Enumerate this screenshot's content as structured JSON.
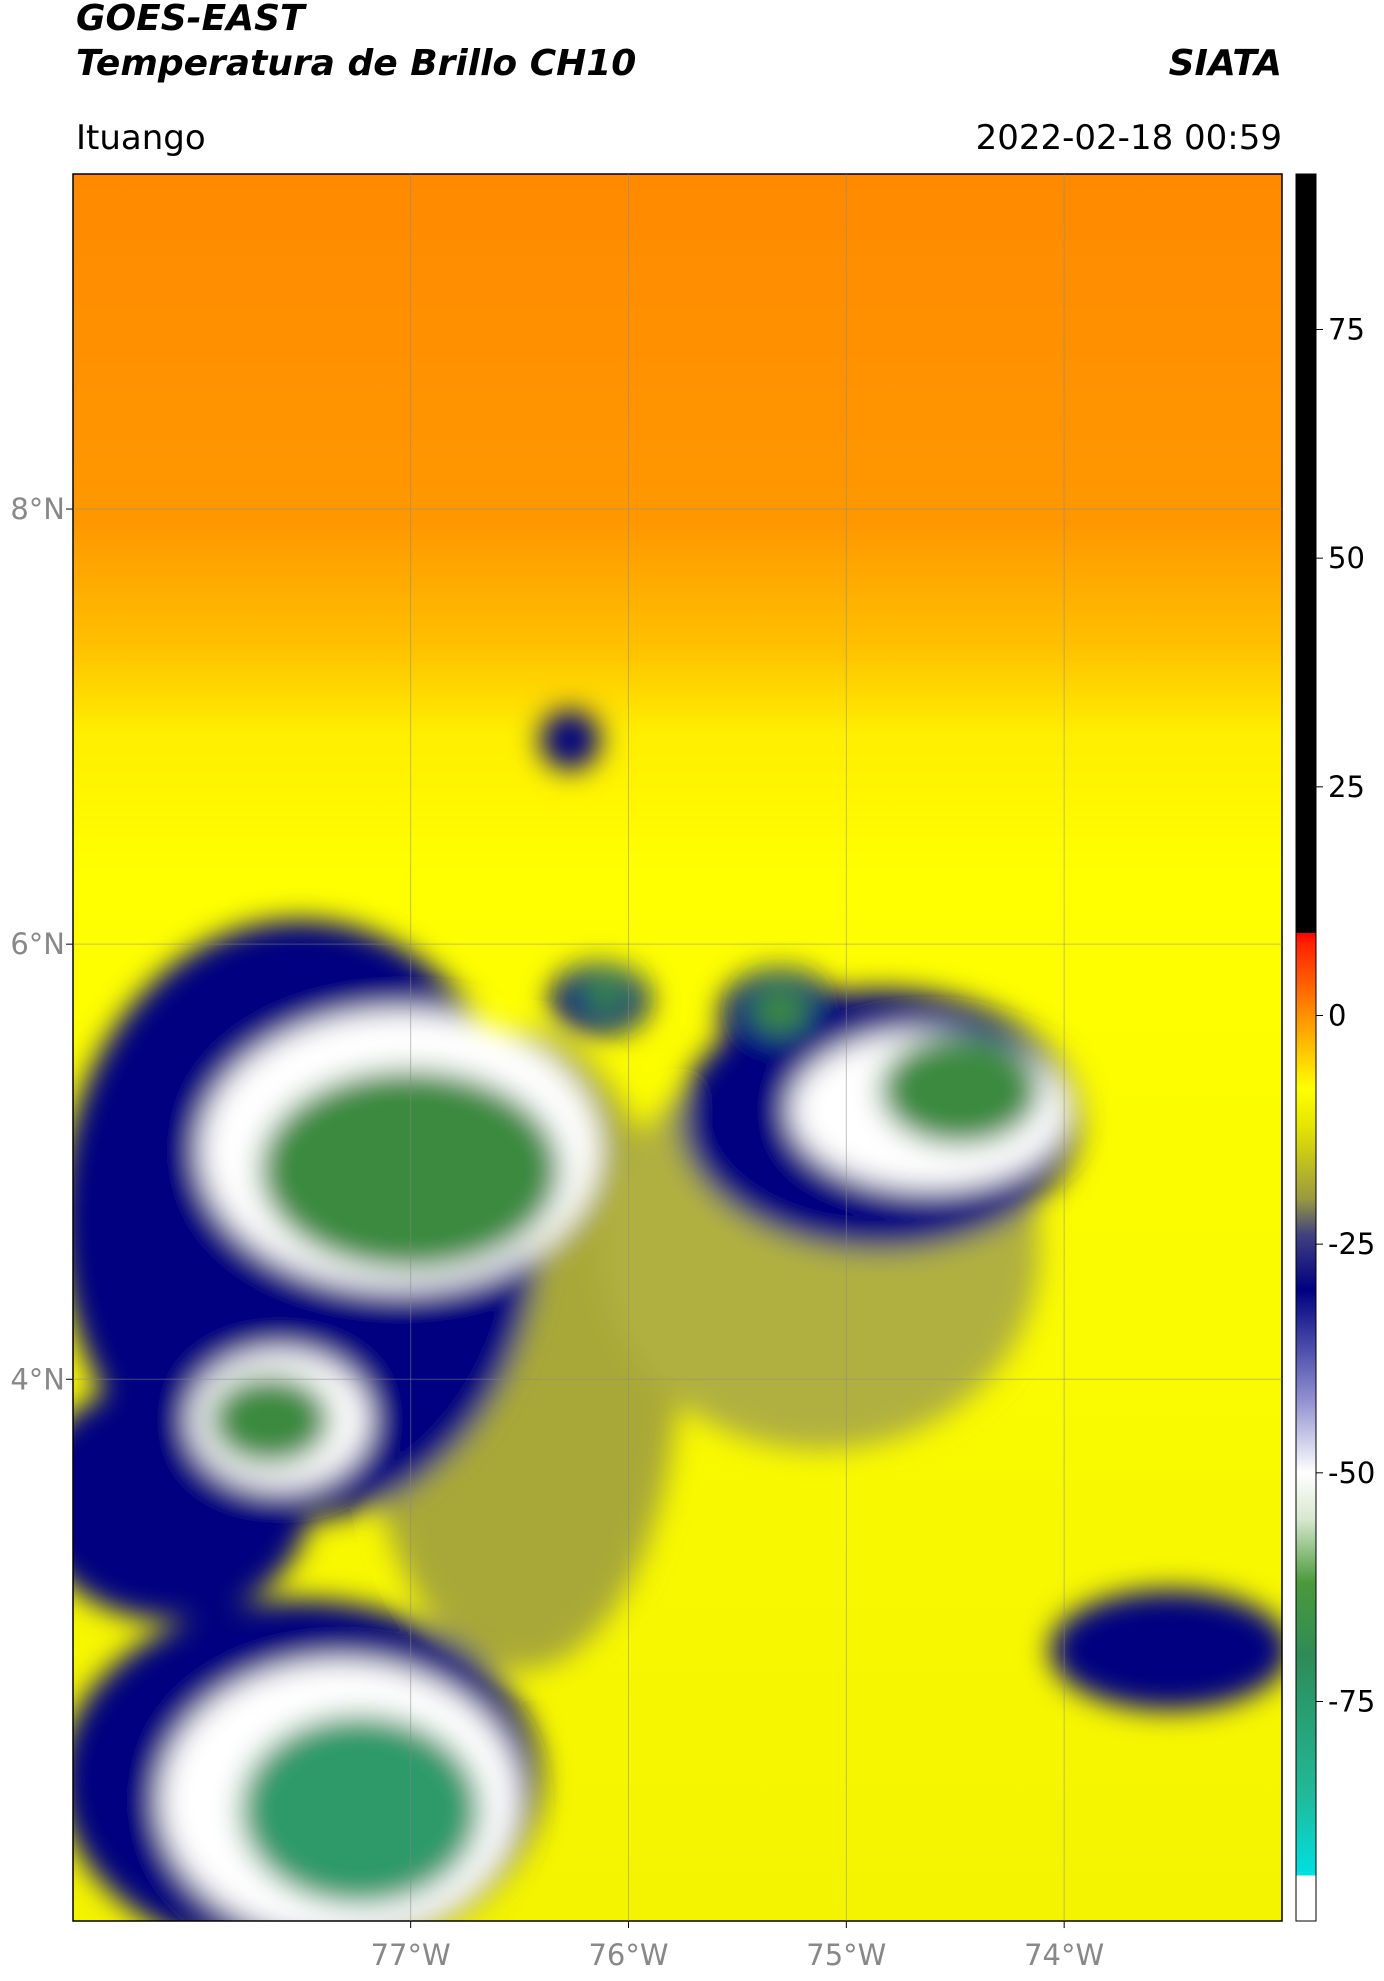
{
  "header": {
    "title": "GOES-EAST",
    "subtitle": "Temperatura de Brillo CH10",
    "org": "SIATA",
    "location": "Ituango",
    "datetime": "2022-02-18 00:59"
  },
  "map": {
    "xlim": [
      -78.55,
      -73.0
    ],
    "ylim": [
      1.51,
      9.54
    ],
    "xticks": [
      {
        "value": -77,
        "label": "77°W"
      },
      {
        "value": -76,
        "label": "76°W"
      },
      {
        "value": -75,
        "label": "75°W"
      },
      {
        "value": -74,
        "label": "74°W"
      }
    ],
    "yticks": [
      {
        "value": 8,
        "label": "8°N"
      },
      {
        "value": 6,
        "label": "6°N"
      },
      {
        "value": 4,
        "label": "4°N"
      }
    ],
    "grid": true
  },
  "colorbar": {
    "lim": [
      -99,
      92
    ],
    "ticks": [
      75,
      50,
      25,
      0,
      -25,
      -50,
      -75
    ],
    "stops": [
      {
        "value": -99,
        "color": "#ffffff"
      },
      {
        "value": -94,
        "color": "#ffffff"
      },
      {
        "value": -94,
        "color": "#00e0e0"
      },
      {
        "value": -85,
        "color": "#22b898"
      },
      {
        "value": -70,
        "color": "#2e8b57"
      },
      {
        "value": -62,
        "color": "#4a9a3a"
      },
      {
        "value": -55,
        "color": "#d8e8d0"
      },
      {
        "value": -50,
        "color": "#ffffff"
      },
      {
        "value": -42,
        "color": "#9090d0"
      },
      {
        "value": -30,
        "color": "#000080"
      },
      {
        "value": -24,
        "color": "#404080"
      },
      {
        "value": -20,
        "color": "#9a9a40"
      },
      {
        "value": -12,
        "color": "#e6e600"
      },
      {
        "value": -8,
        "color": "#ffff00"
      },
      {
        "value": 0,
        "color": "#ff9000"
      },
      {
        "value": 8,
        "color": "#ff2000"
      },
      {
        "value": 9,
        "color": "#ff0000"
      },
      {
        "value": 9,
        "color": "#000000"
      },
      {
        "value": 92,
        "color": "#000000"
      }
    ]
  }
}
